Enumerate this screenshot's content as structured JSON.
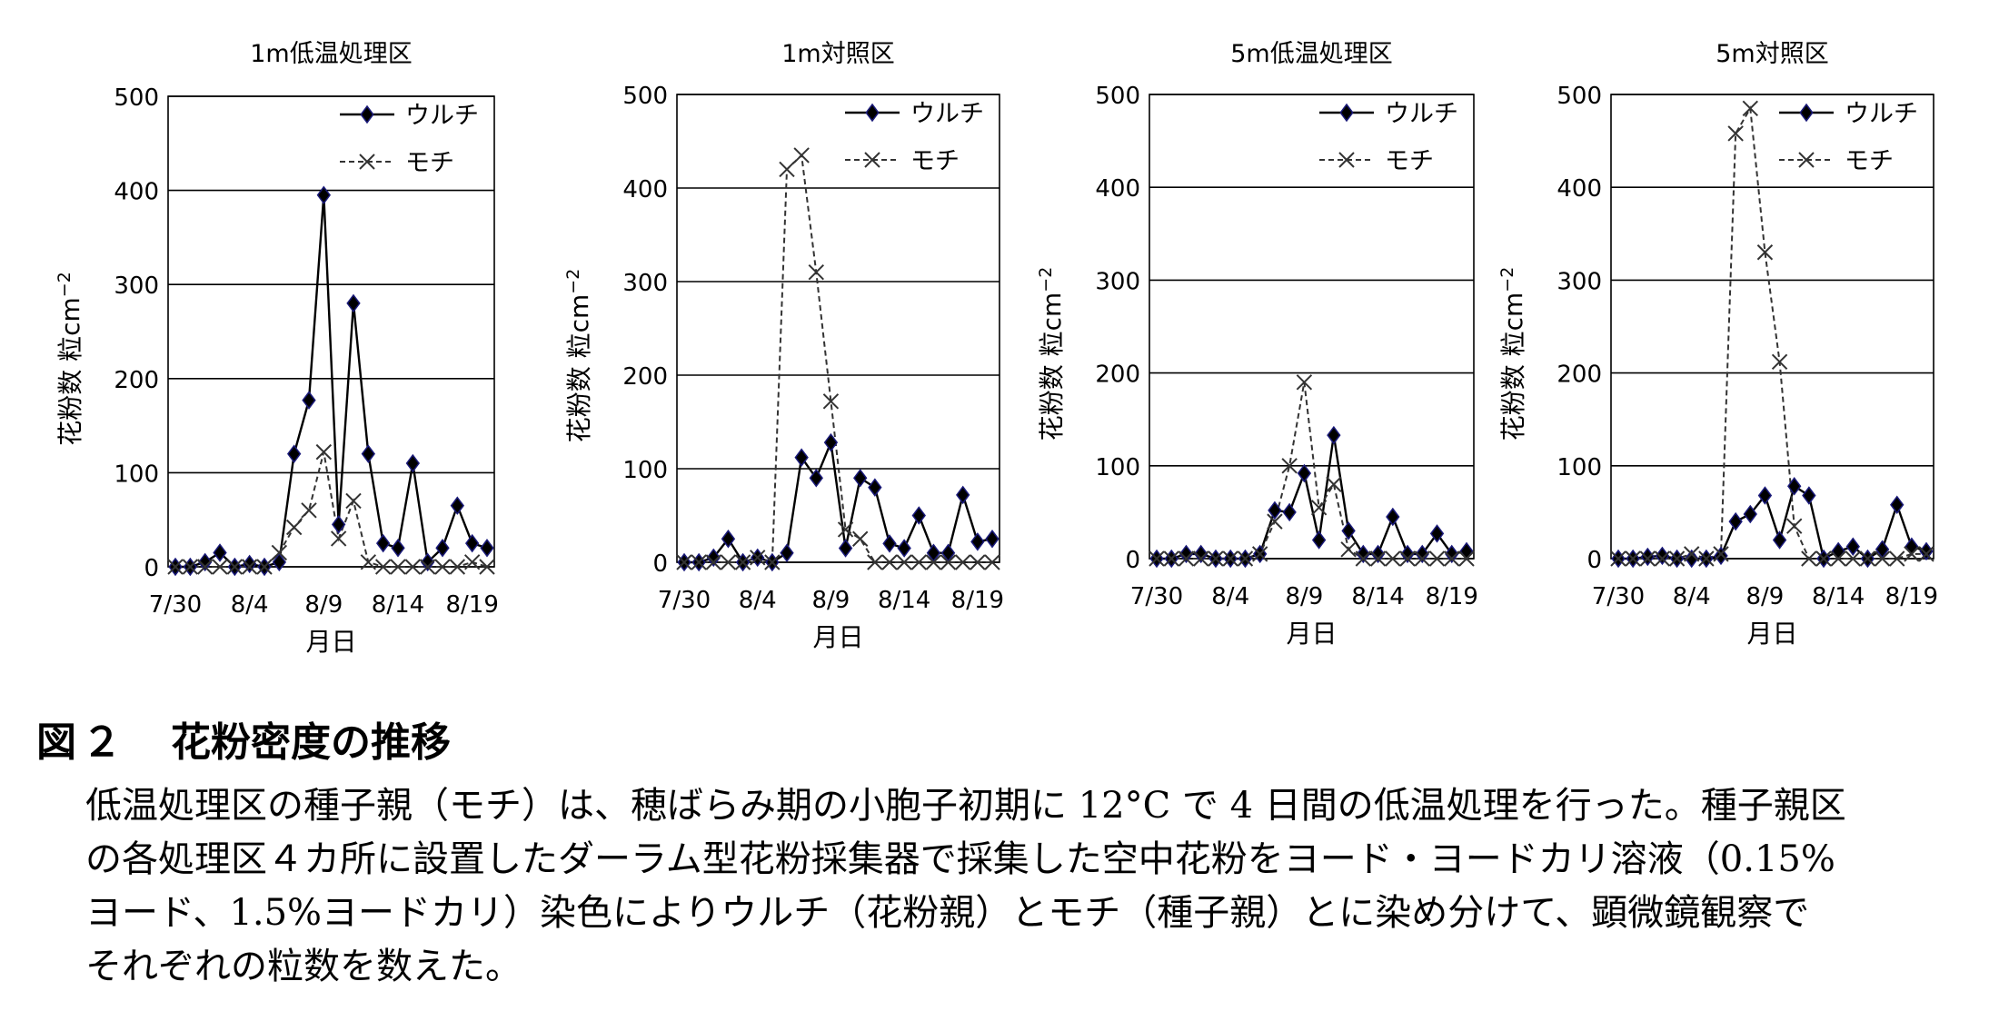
{
  "chart_data": [
    {
      "type": "line",
      "title": "1m低温処理区",
      "xlabel": "月日",
      "ylabel_parts": [
        "花粉数",
        "粒cm",
        "−2"
      ],
      "ylim": [
        0,
        500
      ],
      "yticks": [
        "0",
        "100",
        "200",
        "300",
        "400",
        "500"
      ],
      "xticks": [
        {
          "index": 0,
          "label": "7/30"
        },
        {
          "index": 5,
          "label": "8/4"
        },
        {
          "index": 10,
          "label": "8/9"
        },
        {
          "index": 15,
          "label": "8/14"
        },
        {
          "index": 20,
          "label": "8/19"
        }
      ],
      "series": [
        {
          "name": "ウルチ",
          "marker": "diamond",
          "style": "solid",
          "values": [
            0,
            0,
            5,
            15,
            0,
            3,
            0,
            5,
            120,
            177,
            395,
            45,
            280,
            120,
            25,
            20,
            110,
            5,
            20,
            65,
            25,
            20
          ]
        },
        {
          "name": "モチ",
          "marker": "x",
          "style": "dashed",
          "values": [
            0,
            0,
            0,
            0,
            0,
            0,
            0,
            15,
            42,
            60,
            122,
            30,
            70,
            5,
            0,
            0,
            0,
            0,
            0,
            0,
            5,
            0
          ]
        }
      ]
    },
    {
      "type": "line",
      "title": "1m対照区",
      "xlabel": "月日",
      "ylabel_parts": [
        "花粉数",
        "粒cm",
        "−2"
      ],
      "ylim": [
        0,
        500
      ],
      "yticks": [
        "0",
        "100",
        "200",
        "300",
        "400",
        "500"
      ],
      "xticks": [
        {
          "index": 0,
          "label": "7/30"
        },
        {
          "index": 5,
          "label": "8/4"
        },
        {
          "index": 10,
          "label": "8/9"
        },
        {
          "index": 15,
          "label": "8/14"
        },
        {
          "index": 20,
          "label": "8/19"
        }
      ],
      "series": [
        {
          "name": "ウルチ",
          "marker": "diamond",
          "style": "solid",
          "values": [
            0,
            0,
            5,
            25,
            0,
            5,
            0,
            10,
            112,
            90,
            128,
            15,
            90,
            80,
            20,
            15,
            50,
            10,
            10,
            72,
            22,
            25
          ]
        },
        {
          "name": "モチ",
          "marker": "x",
          "style": "dashed",
          "values": [
            0,
            0,
            0,
            0,
            0,
            5,
            0,
            420,
            435,
            310,
            172,
            35,
            25,
            0,
            0,
            0,
            0,
            0,
            0,
            0,
            0,
            0
          ]
        }
      ]
    },
    {
      "type": "line",
      "title": "5m低温処理区",
      "xlabel": "月日",
      "ylabel_parts": [
        "花粉数",
        "粒cm",
        "−2"
      ],
      "ylim": [
        0,
        500
      ],
      "yticks": [
        "0",
        "100",
        "200",
        "300",
        "400",
        "500"
      ],
      "xticks": [
        {
          "index": 0,
          "label": "7/30"
        },
        {
          "index": 5,
          "label": "8/4"
        },
        {
          "index": 10,
          "label": "8/9"
        },
        {
          "index": 15,
          "label": "8/14"
        },
        {
          "index": 20,
          "label": "8/19"
        }
      ],
      "series": [
        {
          "name": "ウルチ",
          "marker": "diamond",
          "style": "solid",
          "values": [
            0,
            0,
            5,
            5,
            0,
            0,
            0,
            5,
            52,
            50,
            92,
            20,
            133,
            30,
            5,
            5,
            45,
            5,
            5,
            27,
            5,
            8
          ]
        },
        {
          "name": "モチ",
          "marker": "x",
          "style": "dashed",
          "values": [
            0,
            0,
            0,
            0,
            0,
            0,
            0,
            5,
            40,
            100,
            190,
            55,
            80,
            10,
            0,
            0,
            0,
            0,
            0,
            0,
            0,
            0
          ]
        }
      ]
    },
    {
      "type": "line",
      "title": "5m対照区",
      "xlabel": "月日",
      "ylabel_parts": [
        "花粉数",
        "粒cm",
        "−2"
      ],
      "ylim": [
        0,
        500
      ],
      "yticks": [
        "0",
        "100",
        "200",
        "300",
        "400",
        "500"
      ],
      "xticks": [
        {
          "index": 0,
          "label": "7/30"
        },
        {
          "index": 5,
          "label": "8/4"
        },
        {
          "index": 10,
          "label": "8/9"
        },
        {
          "index": 15,
          "label": "8/14"
        },
        {
          "index": 20,
          "label": "8/19"
        }
      ],
      "series": [
        {
          "name": "ウルチ",
          "marker": "diamond",
          "style": "solid",
          "values": [
            0,
            0,
            2,
            3,
            0,
            0,
            0,
            3,
            40,
            48,
            68,
            20,
            78,
            68,
            0,
            8,
            13,
            0,
            10,
            58,
            13,
            8
          ]
        },
        {
          "name": "モチ",
          "marker": "x",
          "style": "dashed",
          "values": [
            0,
            0,
            0,
            0,
            0,
            5,
            0,
            5,
            458,
            485,
            330,
            212,
            35,
            0,
            0,
            0,
            0,
            0,
            0,
            0,
            5,
            5
          ]
        }
      ]
    }
  ],
  "caption": {
    "figure_label": "図",
    "figure_number": "２",
    "title": "花粉密度の推移",
    "lines": [
      "低温処理区の種子親（モチ）は、穂ばらみ期の小胞子初期に 12°C で 4 日間の低温処理を行った。種子親区",
      "の各処理区４カ所に設置したダーラム型花粉採集器で採集した空中花粉をヨード・ヨードカリ溶液（0.15%",
      "ヨード、1.5%ヨードカリ）染色によりウルチ（花粉親）とモチ（種子親）とに染め分けて、顕微鏡観察で",
      "それぞれの粒数を数えた。"
    ]
  }
}
